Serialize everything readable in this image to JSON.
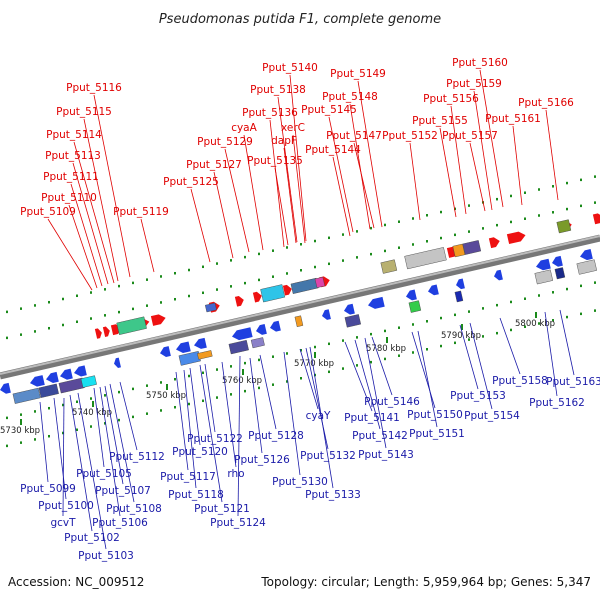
{
  "title": "Pseudomonas putida F1, complete genome",
  "accession": "Accession: NC_009512",
  "summary": "Topology: circular; Length: 5,959,964 bp; Genes: 5,347",
  "colors": {
    "top_label": "#e00000",
    "bottom_label": "#1a1aa8",
    "forward": "#ee1111",
    "reverse": "#1f3fe0",
    "backbone": "#888888",
    "tick": "#1a8a1a"
  },
  "axis_ticks": [
    "5730 kbp",
    "5740 kbp",
    "5750 kbp",
    "5760 kbp",
    "5770 kbp",
    "5780 kbp",
    "5790 kbp",
    "5800 kbp"
  ],
  "top_labels": [
    "Pput_5109",
    "Pput_5110",
    "Pput_5111",
    "Pput_5113",
    "Pput_5114",
    "Pput_5115",
    "Pput_5116",
    "Pput_5119",
    "Pput_5125",
    "Pput_5127",
    "Pput_5129",
    "cyaA",
    "Pput_5136",
    "Pput_5138",
    "Pput_5140",
    "xerC",
    "dapF",
    "Pput_5135",
    "Pput_5144",
    "Pput_5145",
    "Pput_5147",
    "Pput_5148",
    "Pput_5149",
    "Pput_5152",
    "Pput_5155",
    "Pput_5156",
    "Pput_5157",
    "Pput_5159",
    "Pput_5160",
    "Pput_5161",
    "Pput_5166"
  ],
  "bottom_labels": [
    "Pput_5099",
    "Pput_5100",
    "gcvT",
    "Pput_5102",
    "Pput_5103",
    "Pput_5105",
    "Pput_5106",
    "Pput_5107",
    "Pput_5108",
    "Pput_5112",
    "Pput_5117",
    "Pput_5118",
    "Pput_5120",
    "Pput_5121",
    "Pput_5122",
    "rho",
    "Pput_5124",
    "Pput_5126",
    "Pput_5128",
    "Pput_5130",
    "cyaY",
    "Pput_5132",
    "Pput_5133",
    "Pput_5141",
    "Pput_5142",
    "Pput_5143",
    "Pput_5146",
    "Pput_5150",
    "Pput_5151",
    "Pput_5153",
    "Pput_5154",
    "Pput_5158",
    "Pput_5162",
    "Pput_5163"
  ]
}
